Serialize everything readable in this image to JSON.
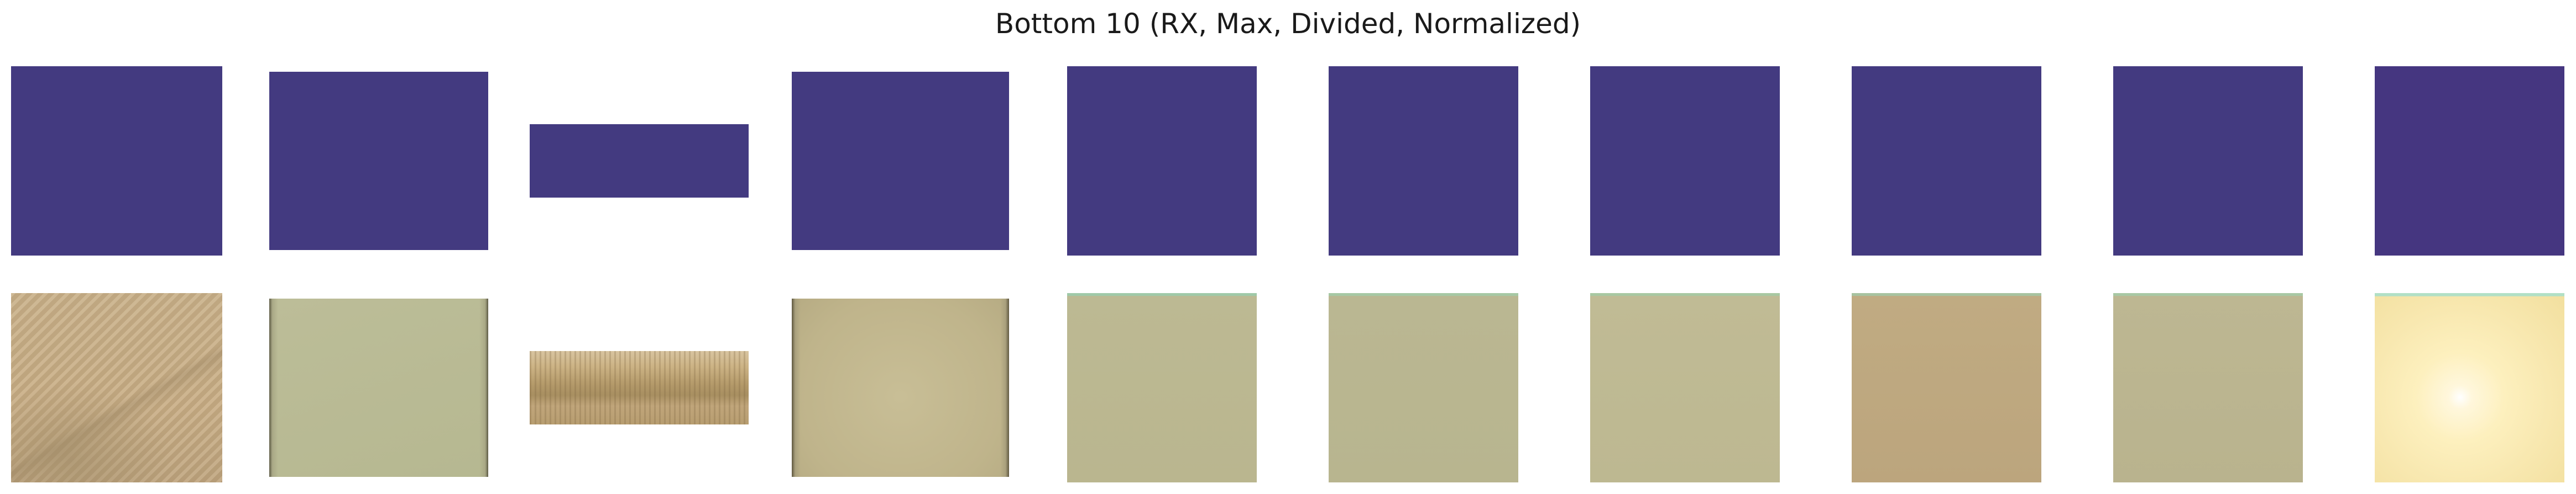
{
  "figure": {
    "title": "Bottom 10 (RX, Max, Divided, Normalized)"
  },
  "rx_tiles": [
    {
      "name": "rx-map-1",
      "color": "#433a80"
    },
    {
      "name": "rx-map-2",
      "color": "#433a80"
    },
    {
      "name": "rx-map-3",
      "color": "#433a80"
    },
    {
      "name": "rx-map-4",
      "color": "#433a80"
    },
    {
      "name": "rx-map-5",
      "color": "#433a80"
    },
    {
      "name": "rx-map-6",
      "color": "#433a80"
    },
    {
      "name": "rx-map-7",
      "color": "#433a80"
    },
    {
      "name": "rx-map-8",
      "color": "#433a80"
    },
    {
      "name": "rx-map-9",
      "color": "#433a80"
    },
    {
      "name": "rx-map-10",
      "color": "#453680"
    }
  ],
  "source_images": [
    {
      "name": "sand-dune-image"
    },
    {
      "name": "flat-terrain-image"
    },
    {
      "name": "landscape-panorama-image"
    },
    {
      "name": "flat-terrain-image"
    },
    {
      "name": "flat-terrain-image"
    },
    {
      "name": "flat-terrain-image"
    },
    {
      "name": "flat-terrain-image"
    },
    {
      "name": "flat-terrain-image"
    },
    {
      "name": "flat-terrain-image"
    },
    {
      "name": "overexposed-sun-image"
    }
  ]
}
